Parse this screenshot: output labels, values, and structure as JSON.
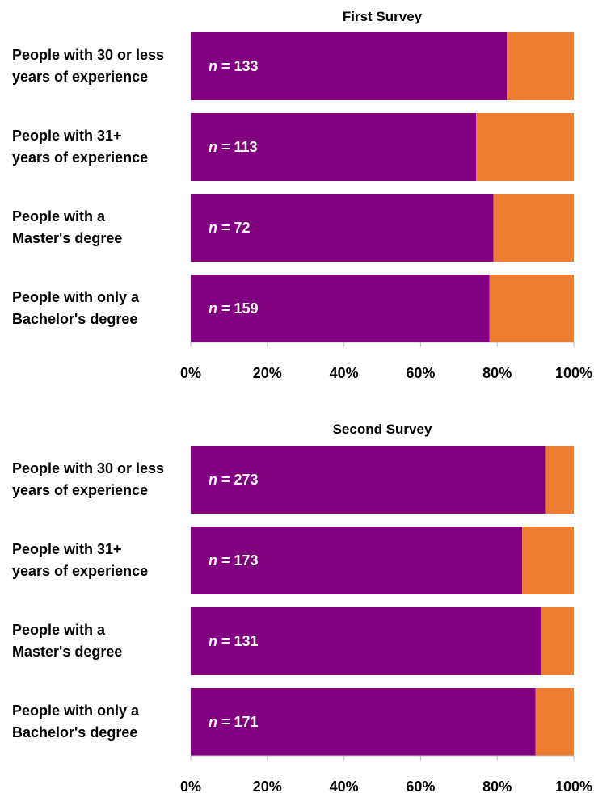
{
  "colors": {
    "primary": "#800080",
    "remainder": "#ED7D31",
    "axis": "#BFBFBF"
  },
  "chart_data": [
    {
      "type": "bar",
      "orientation": "horizontal",
      "stacked": true,
      "title": "First Survey",
      "categories": [
        [
          "People with 30 or less",
          "years of experience"
        ],
        [
          "People with 31+",
          "years of experience"
        ],
        [
          "People with a",
          "Master's degree"
        ],
        [
          "People with only a",
          "Bachelor's degree"
        ]
      ],
      "n_labels": [
        "133",
        "113",
        "72",
        "159"
      ],
      "series": [
        {
          "values": [
            82.5,
            74.5,
            79,
            78
          ]
        },
        {
          "values": [
            17.5,
            25.5,
            21,
            22
          ]
        }
      ],
      "xlim": [
        0,
        100
      ],
      "xticks": [
        "0%",
        "20%",
        "40%",
        "60%",
        "80%",
        "100%"
      ],
      "grid": false
    },
    {
      "type": "bar",
      "orientation": "horizontal",
      "stacked": true,
      "title": "Second Survey",
      "categories": [
        [
          "People with 30 or less",
          "years of experience"
        ],
        [
          "People with 31+",
          "years of experience"
        ],
        [
          "People with a",
          "Master's degree"
        ],
        [
          "People with only a",
          "Bachelor's degree"
        ]
      ],
      "n_labels": [
        "273",
        "173",
        "131",
        "171"
      ],
      "series": [
        {
          "values": [
            92.5,
            86.5,
            91.5,
            90
          ]
        },
        {
          "values": [
            7.5,
            13.5,
            8.5,
            10
          ]
        }
      ],
      "xlim": [
        0,
        100
      ],
      "xticks": [
        "0%",
        "20%",
        "40%",
        "60%",
        "80%",
        "100%"
      ],
      "grid": false
    }
  ]
}
